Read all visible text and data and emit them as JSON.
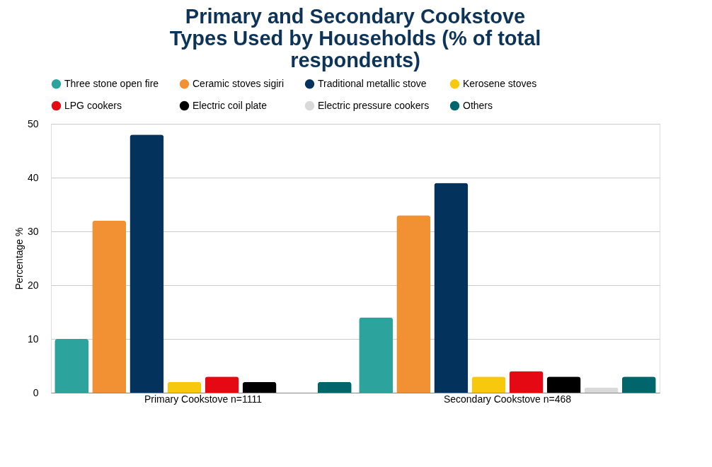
{
  "chart_data": {
    "type": "bar",
    "title": [
      "Primary and Secondary Cookstove",
      "Types Used by Households (% of total",
      "respondents)"
    ],
    "ylabel": "Percentage %",
    "categories": [
      "Primary Cookstove n=1111",
      "Secondary Cookstove n=468"
    ],
    "series": [
      {
        "name": "Three stone open fire",
        "color": "#2ca39c",
        "values": [
          10,
          14
        ]
      },
      {
        "name": "Ceramic stoves sigiri",
        "color": "#f29133",
        "values": [
          32,
          33
        ]
      },
      {
        "name": "Traditional metallic stove",
        "color": "#03335c",
        "values": [
          48,
          39
        ]
      },
      {
        "name": "Kerosene stoves",
        "color": "#f6c90e",
        "values": [
          2,
          3
        ]
      },
      {
        "name": "LPG cookers",
        "color": "#e50914",
        "values": [
          3,
          4
        ]
      },
      {
        "name": "Electric coil plate",
        "color": "#000000",
        "values": [
          2,
          3
        ]
      },
      {
        "name": "Electric pressure cookers",
        "color": "#d9d9d9",
        "values": [
          0,
          1
        ]
      },
      {
        "name": "Others",
        "color": "#00666b",
        "values": [
          2,
          3
        ]
      }
    ],
    "ylim": [
      0,
      50
    ],
    "yticks": [
      0,
      10,
      20,
      30,
      40,
      50
    ],
    "grid": "y",
    "legend": "top"
  }
}
